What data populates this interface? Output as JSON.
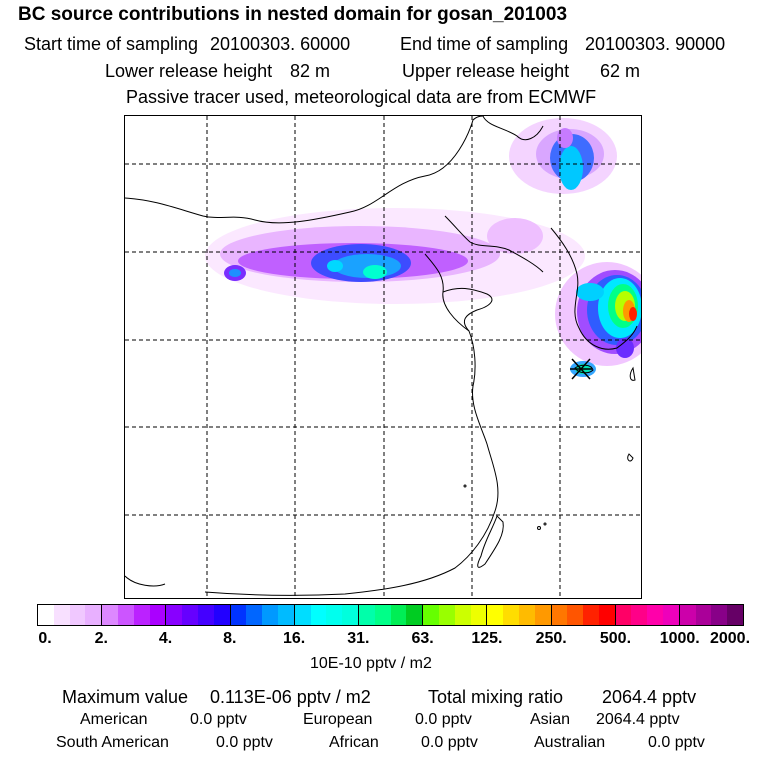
{
  "title": "BC  source contributions in nested domain for gosan_201003",
  "header": {
    "start_label": "Start time of sampling",
    "start_value": "20100303. 60000",
    "end_label": "End time of sampling",
    "end_value": "20100303. 90000",
    "lower_label": "Lower release height",
    "lower_value": "82 m",
    "upper_label": "Upper release height",
    "upper_value": "62 m",
    "note": "Passive tracer used, meteorological data are from ECMWF"
  },
  "colorbar": {
    "ticks": [
      "0.",
      "2.",
      "4.",
      "8.",
      "16.",
      "31.",
      "63.",
      "125.",
      "250.",
      "500.",
      "1000.",
      "2000."
    ],
    "unit": "10E-10 pptv / m2",
    "colors": [
      [
        "#ffffff",
        "#f8e0ff",
        "#f0c8ff",
        "#e8b0ff"
      ],
      [
        "#dd88ff",
        "#cc55ff",
        "#bb22ff",
        "#aa00ff"
      ],
      [
        "#8800ff",
        "#6600ff",
        "#4400ff",
        "#2200ff"
      ],
      [
        "#0033ff",
        "#0066ff",
        "#0099ff",
        "#00bbff"
      ],
      [
        "#00ddff",
        "#00ffff",
        "#00ffee",
        "#00ffdd"
      ],
      [
        "#00ffaa",
        "#00ff88",
        "#00ee55",
        "#00cc22"
      ],
      [
        "#66ff00",
        "#99ff00",
        "#ccff00",
        "#eeff00"
      ],
      [
        "#ffff00",
        "#ffdd00",
        "#ffbb00",
        "#ff9900"
      ],
      [
        "#ff7700",
        "#ff5500",
        "#ff2200",
        "#ff0000"
      ],
      [
        "#ff0066",
        "#ff0088",
        "#ff00aa",
        "#ee00bb"
      ],
      [
        "#cc00aa",
        "#aa0099",
        "#880088",
        "#660066"
      ]
    ]
  },
  "stats": {
    "max_label": "Maximum value",
    "max_value": "0.113E-06 pptv / m2",
    "total_label": "Total mixing ratio",
    "total_value": "2064.4 pptv",
    "regions": [
      {
        "name": "American",
        "value": "0.0 pptv"
      },
      {
        "name": "European",
        "value": "0.0 pptv"
      },
      {
        "name": "Asian",
        "value": "2064.4 pptv"
      },
      {
        "name": "South American",
        "value": "0.0 pptv"
      },
      {
        "name": "African",
        "value": "0.0 pptv"
      },
      {
        "name": "Australian",
        "value": "0.0 pptv"
      }
    ]
  }
}
